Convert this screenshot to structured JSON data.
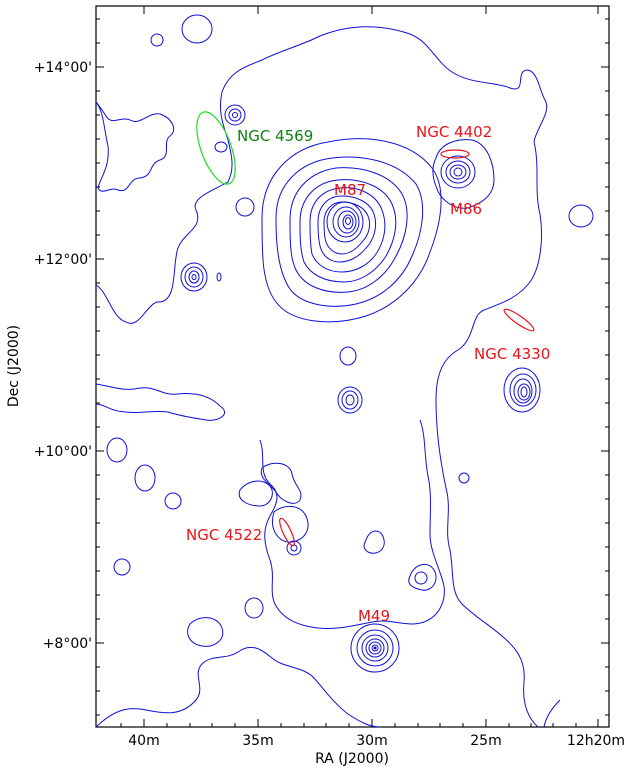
{
  "axes": {
    "xlabel": "RA (J2000)",
    "ylabel": "Dec (J2000)",
    "x_ticks": [
      "40m",
      "35m",
      "30m",
      "25m",
      "12h20m"
    ],
    "y_ticks": [
      "+14°00'",
      "+12°00'",
      "+10°00'",
      "+8°00'"
    ]
  },
  "colors": {
    "contour": "#1010d8",
    "red_label": "#e8141a",
    "green_label": "#108010",
    "green_ellipse": "#22dd22"
  },
  "galaxies": [
    {
      "name": "NGC 4569",
      "color": "#108010"
    },
    {
      "name": "NGC 4402",
      "color": "#e8141a"
    },
    {
      "name": "M87",
      "color": "#e8141a"
    },
    {
      "name": "M86",
      "color": "#e8141a"
    },
    {
      "name": "NGC 4330",
      "color": "#e8141a"
    },
    {
      "name": "NGC 4522",
      "color": "#e8141a"
    },
    {
      "name": "M49",
      "color": "#e8141a"
    }
  ]
}
